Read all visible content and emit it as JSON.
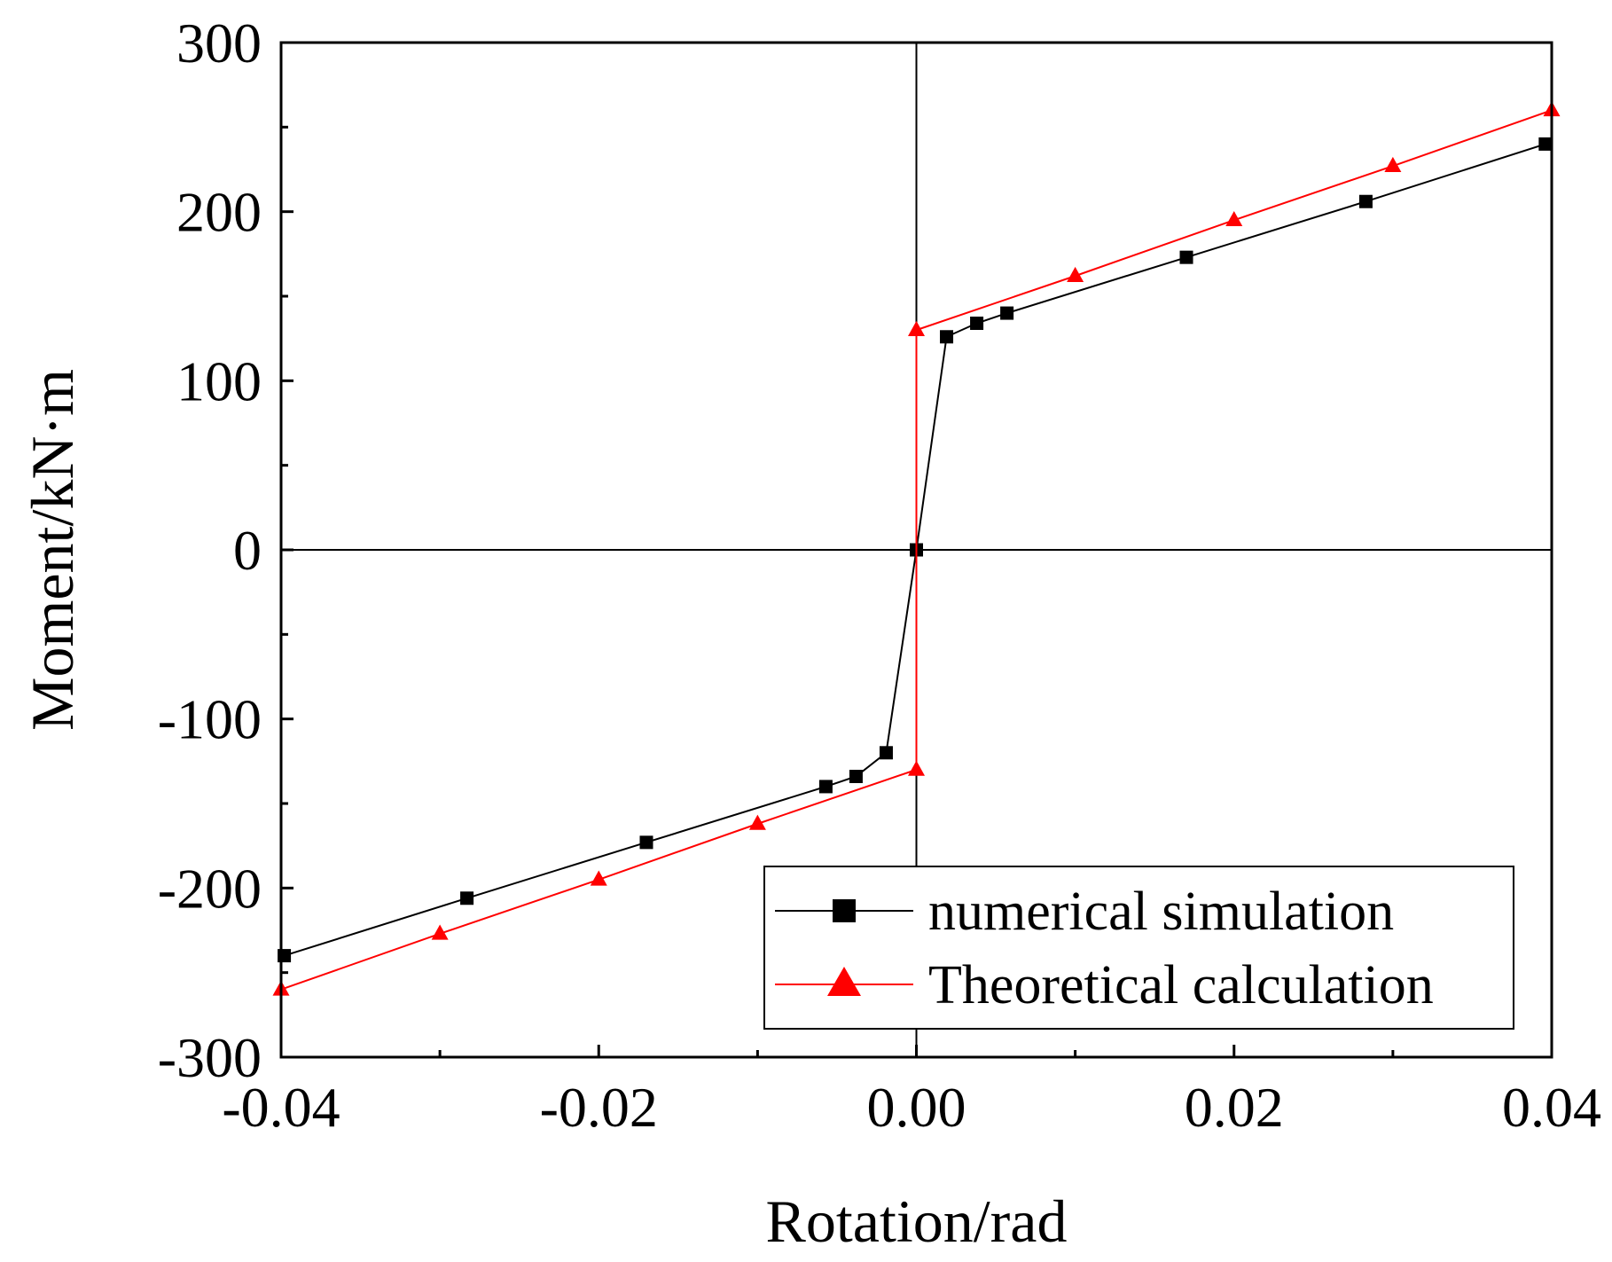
{
  "chart_data": {
    "type": "line",
    "title": "",
    "xlabel": "Rotation/rad",
    "ylabel": "Moment/kN·m",
    "xlim": [
      -0.04,
      0.04
    ],
    "ylim": [
      -300,
      300
    ],
    "x_ticks": [
      -0.04,
      -0.02,
      0.0,
      0.02,
      0.04
    ],
    "x_tick_labels": [
      "-0.04",
      "-0.02",
      "0.00",
      "0.02",
      "0.04"
    ],
    "y_ticks": [
      -300,
      -200,
      -100,
      0,
      100,
      200,
      300
    ],
    "y_tick_labels": [
      "-300",
      "-200",
      "-100",
      "0",
      "100",
      "200",
      "300"
    ],
    "grid": false,
    "zero_lines": true,
    "legend_position": "bottom-right",
    "series": [
      {
        "name": "numerical simulation",
        "color": "#000000",
        "marker": "square",
        "x": [
          -0.0398,
          -0.0283,
          -0.017,
          -0.0057,
          -0.0038,
          -0.0019,
          0.0,
          0.0019,
          0.0038,
          0.0057,
          0.017,
          0.0283,
          0.0396
        ],
        "y": [
          -240,
          -206,
          -173,
          -140,
          -134,
          -120,
          0,
          126,
          134,
          140,
          173,
          206,
          240
        ]
      },
      {
        "name": "Theoretical calculation",
        "color": "#ff0000",
        "marker": "triangle",
        "x": [
          -0.04,
          -0.03,
          -0.02,
          -0.01,
          0.0,
          0.0,
          0.01,
          0.02,
          0.03,
          0.04
        ],
        "y": [
          -260,
          -227,
          -195,
          -162,
          -130,
          130,
          162,
          195,
          227,
          260
        ]
      }
    ]
  }
}
